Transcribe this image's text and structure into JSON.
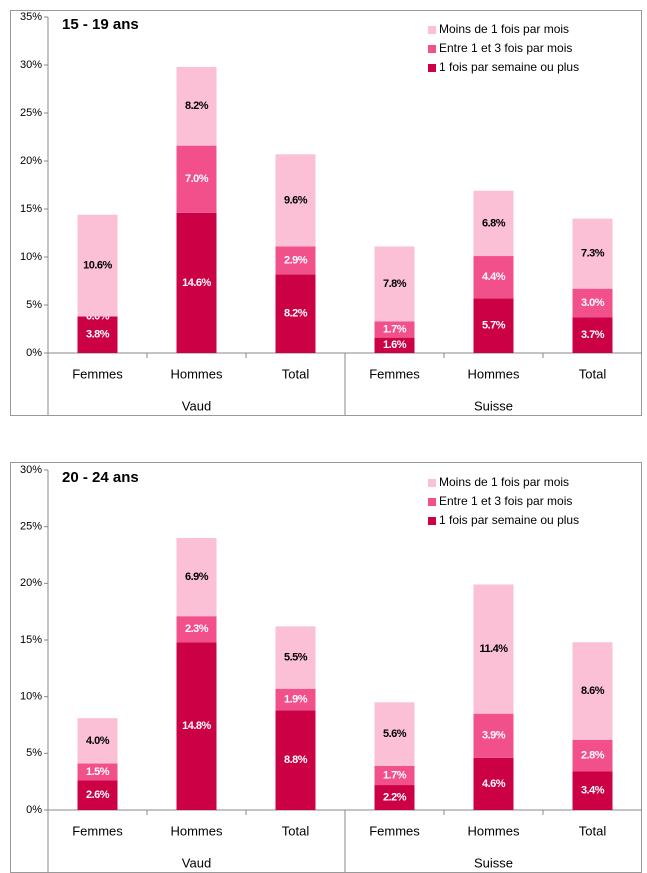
{
  "chart_data": [
    {
      "type": "bar",
      "stacked": true,
      "title": "15 - 19 ans",
      "categories": [
        "Femmes",
        "Hommes",
        "Total",
        "Femmes",
        "Hommes",
        "Total"
      ],
      "groups": [
        "Vaud",
        "Suisse"
      ],
      "ylim": [
        0,
        35
      ],
      "yticks": [
        {
          "value": 0,
          "label": "0%"
        },
        {
          "value": 5,
          "label": "5%"
        },
        {
          "value": 10,
          "label": "10%"
        },
        {
          "value": 15,
          "label": "15%"
        },
        {
          "value": 20,
          "label": "20%"
        },
        {
          "value": 25,
          "label": "25%"
        },
        {
          "value": 30,
          "label": "30%"
        },
        {
          "value": 35,
          "label": "35%"
        }
      ],
      "series": [
        {
          "name": "Moins de 1 fois par mois",
          "color": "#fbbfd6",
          "values": [
            10.6,
            8.2,
            9.6,
            7.8,
            6.8,
            7.3
          ],
          "value_labels": [
            "10.6%",
            "8.2%",
            "9.6%",
            "7.8%",
            "6.8%",
            "7.3%"
          ]
        },
        {
          "name": "Entre 1 et 3 fois par mois",
          "color": "#f2508b",
          "values": [
            0.0,
            7.0,
            2.9,
            1.7,
            4.4,
            3.0
          ],
          "value_labels": [
            "0.0%",
            "7.0%",
            "2.9%",
            "1.7%",
            "4.4%",
            "3.0%"
          ]
        },
        {
          "name": "1 fois par semaine ou plus",
          "color": "#cc0044",
          "values": [
            3.8,
            14.6,
            8.2,
            1.6,
            5.7,
            3.7
          ],
          "value_labels": [
            "3.8%",
            "14.6%",
            "8.2%",
            "1.6%",
            "5.7%",
            "3.7%"
          ]
        }
      ]
    },
    {
      "type": "bar",
      "stacked": true,
      "title": "20 - 24 ans",
      "categories": [
        "Femmes",
        "Hommes",
        "Total",
        "Femmes",
        "Hommes",
        "Total"
      ],
      "groups": [
        "Vaud",
        "Suisse"
      ],
      "ylim": [
        0,
        30
      ],
      "yticks": [
        {
          "value": 0,
          "label": "0%"
        },
        {
          "value": 5,
          "label": "5%"
        },
        {
          "value": 10,
          "label": "10%"
        },
        {
          "value": 15,
          "label": "15%"
        },
        {
          "value": 20,
          "label": "20%"
        },
        {
          "value": 25,
          "label": "25%"
        },
        {
          "value": 30,
          "label": "30%"
        }
      ],
      "series": [
        {
          "name": "Moins de 1 fois par mois",
          "color": "#fbbfd6",
          "values": [
            4.0,
            6.9,
            5.5,
            5.6,
            11.4,
            8.6
          ],
          "value_labels": [
            "4.0%",
            "6.9%",
            "5.5%",
            "5.6%",
            "11.4%",
            "8.6%"
          ]
        },
        {
          "name": "Entre 1 et 3 fois par mois",
          "color": "#f2508b",
          "values": [
            1.5,
            2.3,
            1.9,
            1.7,
            3.9,
            2.8
          ],
          "value_labels": [
            "1.5%",
            "2.3%",
            "1.9%",
            "1.7%",
            "3.9%",
            "2.8%"
          ]
        },
        {
          "name": "1 fois par semaine ou plus",
          "color": "#cc0044",
          "values": [
            2.6,
            14.8,
            8.8,
            2.2,
            4.6,
            3.4
          ],
          "value_labels": [
            "2.6%",
            "14.8%",
            "8.8%",
            "2.2%",
            "4.6%",
            "3.4%"
          ]
        }
      ]
    }
  ]
}
